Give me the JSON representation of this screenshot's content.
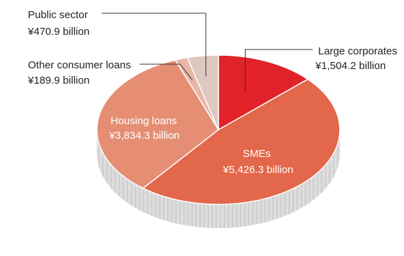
{
  "chart_data": {
    "type": "pie",
    "categories": [
      "Large corporates",
      "SMEs",
      "Housing loans",
      "Other consumer loans",
      "Public sector"
    ],
    "series": [
      {
        "values": [
          1504.2,
          5426.3,
          3834.3,
          189.9,
          470.9
        ]
      }
    ],
    "value_labels": [
      "¥1,504.2 billion",
      "¥5,426.3 billion",
      "¥3,834.3 billion",
      "¥189.9 billion",
      "¥470.9 billion"
    ],
    "colors": [
      "#e12229",
      "#e3674a",
      "#e58e74",
      "#e9b5a6",
      "#dec8bf"
    ],
    "side_color": "#d9d9d9",
    "style": "3d"
  }
}
